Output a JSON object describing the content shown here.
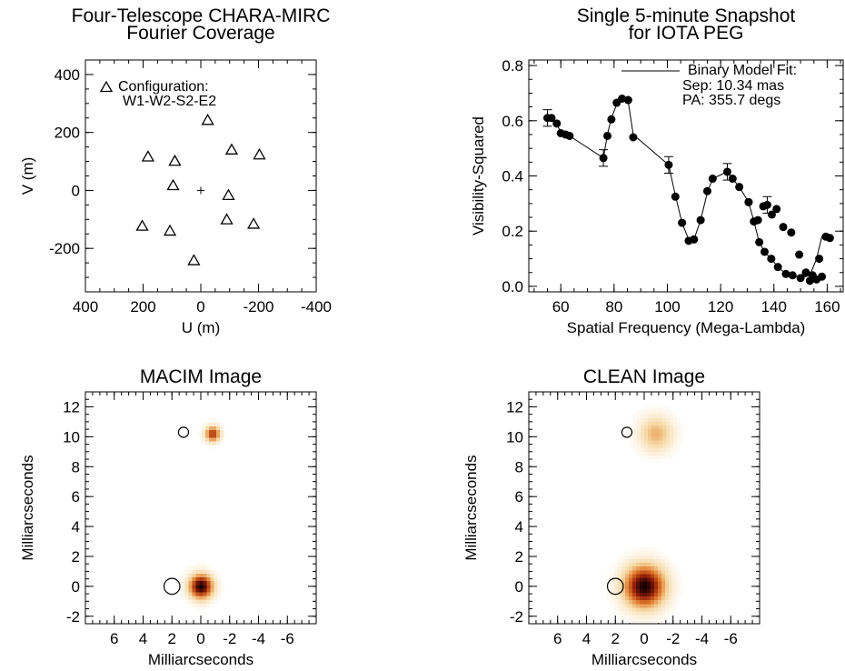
{
  "chart_data": [
    {
      "type": "scatter",
      "title": [
        "Four-Telescope CHARA-MIRC",
        "Fourier Coverage"
      ],
      "xlabel": "U (m)",
      "ylabel": "V (m)",
      "xlim": [
        400,
        -400
      ],
      "ylim": [
        -350,
        450
      ],
      "xticks": [
        400,
        200,
        0,
        -200,
        -400
      ],
      "xtick_labels": [
        "400",
        "200",
        "0",
        "-200",
        "-400"
      ],
      "yticks": [
        -200,
        0,
        200,
        400
      ],
      "ytick_labels": [
        "-200",
        "0",
        "200",
        "400"
      ],
      "legend": [
        "Configuration:",
        "W1-W2-S2-E2"
      ],
      "center_mark": [
        0,
        0
      ],
      "points": [
        [
          -24,
          242
        ],
        [
          24,
          -242
        ],
        [
          -107,
          140
        ],
        [
          107,
          -140
        ],
        [
          -203,
          123
        ],
        [
          203,
          -123
        ],
        [
          90,
          101
        ],
        [
          -90,
          -101
        ],
        [
          183,
          116
        ],
        [
          -183,
          -116
        ],
        [
          96,
          17
        ],
        [
          -96,
          -17
        ]
      ]
    },
    {
      "type": "scatter",
      "title": [
        "Single 5-minute Snapshot",
        "for IOTA PEG"
      ],
      "xlabel": "Spatial Frequency (Mega-Lambda)",
      "ylabel": "Visibility-Squared",
      "xlim": [
        48,
        166
      ],
      "ylim": [
        -0.02,
        0.82
      ],
      "xticks": [
        60,
        80,
        100,
        120,
        140,
        160
      ],
      "xtick_labels": [
        "60",
        "80",
        "100",
        "120",
        "140",
        "160"
      ],
      "yticks": [
        0.0,
        0.2,
        0.4,
        0.6,
        0.8
      ],
      "ytick_labels": [
        "0.0",
        "0.2",
        "0.4",
        "0.6",
        "0.8"
      ],
      "legend": [
        "Binary Model Fit:",
        "Sep: 10.34 mas",
        "PA: 355.7 degs"
      ],
      "series": [
        {
          "x": [
            55,
            56.5,
            58.5,
            60,
            61.8,
            63.3,
            76,
            77.5,
            79,
            81,
            83,
            85.3,
            87.2,
            100.5,
            103,
            105.5,
            108,
            110,
            112.5,
            115,
            117,
            122.5,
            124.5,
            127,
            130.5,
            134,
            136,
            137.5,
            139.2,
            141,
            143.5,
            146.5,
            149.5,
            152,
            154.5,
            157,
            159.5,
            161
          ],
          "y": [
            0.61,
            0.61,
            0.59,
            0.555,
            0.55,
            0.545,
            0.465,
            0.545,
            0.605,
            0.665,
            0.68,
            0.675,
            0.54,
            0.44,
            0.325,
            0.23,
            0.165,
            0.17,
            0.24,
            0.345,
            0.39,
            0.415,
            0.39,
            0.36,
            0.305,
            0.24,
            0.29,
            0.295,
            0.26,
            0.28,
            0.215,
            0.195,
            0.115,
            0.05,
            0.04,
            0.1,
            0.18,
            0.175
          ],
          "errors": [
            [
              55,
              0.61,
              0.03
            ],
            [
              76,
              0.465,
              0.03
            ],
            [
              100.5,
              0.44,
              0.03
            ],
            [
              122.5,
              0.415,
              0.03
            ],
            [
              137.5,
              0.295,
              0.03
            ]
          ]
        },
        {
          "x": [
            130.5,
            132.5,
            134.5,
            136.5,
            139,
            141.5,
            144.5,
            147,
            150,
            153.5,
            156,
            158
          ],
          "y": [
            0.305,
            0.235,
            0.16,
            0.125,
            0.1,
            0.07,
            0.045,
            0.04,
            0.03,
            0.02,
            0.025,
            0.035
          ]
        }
      ],
      "fit_line": {
        "x": [
          55,
          56.5,
          58.5,
          60,
          61.8,
          63.3,
          76,
          77.5,
          79,
          81,
          83,
          85.3,
          87.2,
          100.5,
          103,
          105.5,
          108,
          110,
          112.5,
          115,
          117,
          122.5,
          124.5,
          127,
          130.5,
          132.5,
          134.5,
          136.5,
          139,
          141.5,
          144.5,
          147,
          150,
          153.5,
          156,
          158,
          161
        ],
        "y": [
          0.61,
          0.605,
          0.585,
          0.56,
          0.55,
          0.545,
          0.465,
          0.55,
          0.61,
          0.66,
          0.675,
          0.67,
          0.55,
          0.44,
          0.33,
          0.23,
          0.17,
          0.17,
          0.24,
          0.34,
          0.39,
          0.415,
          0.39,
          0.36,
          0.305,
          0.235,
          0.16,
          0.125,
          0.1,
          0.07,
          0.045,
          0.04,
          0.03,
          0.04,
          0.1,
          0.18,
          0.175
        ]
      }
    },
    {
      "type": "heatmap",
      "title": "MACIM Image",
      "xlabel": "Milliarcseconds",
      "ylabel": "Milliarcseconds",
      "xlim": [
        8,
        -8
      ],
      "ylim": [
        -2.5,
        13
      ],
      "xticks": [
        6,
        4,
        2,
        0,
        -2,
        -4,
        -6
      ],
      "xtick_labels": [
        "6",
        "4",
        "2",
        "0",
        "-2",
        "-4",
        "-6"
      ],
      "yticks": [
        -2,
        0,
        2,
        4,
        6,
        8,
        10,
        12
      ],
      "ytick_labels": [
        "-2",
        "0",
        "2",
        "4",
        "6",
        "8",
        "10",
        "12"
      ],
      "sources": [
        {
          "x": 0.0,
          "y": 0.0,
          "intensity": 1.0,
          "sigma": 0.55
        },
        {
          "x": -0.8,
          "y": 10.2,
          "intensity": 0.7,
          "sigma": 0.35
        }
      ],
      "circles": [
        {
          "x": 2.0,
          "y": 0.0,
          "r": 0.55
        },
        {
          "x": 1.2,
          "y": 10.3,
          "r": 0.35
        }
      ]
    },
    {
      "type": "heatmap",
      "title": "CLEAN Image",
      "xlabel": "Milliarcseconds",
      "ylabel": "Milliarcseconds",
      "xlim": [
        8,
        -8
      ],
      "ylim": [
        -2.5,
        13
      ],
      "xticks": [
        6,
        4,
        2,
        0,
        -2,
        -4,
        -6
      ],
      "xtick_labels": [
        "6",
        "4",
        "2",
        "0",
        "-2",
        "-4",
        "-6"
      ],
      "yticks": [
        -2,
        0,
        2,
        4,
        6,
        8,
        10,
        12
      ],
      "ytick_labels": [
        "-2",
        "0",
        "2",
        "4",
        "6",
        "8",
        "10",
        "12"
      ],
      "sources": [
        {
          "x": 0.0,
          "y": 0.0,
          "intensity": 1.0,
          "sigma": 0.95
        },
        {
          "x": -0.8,
          "y": 10.2,
          "intensity": 0.35,
          "sigma": 0.8
        }
      ],
      "circles": [
        {
          "x": 2.0,
          "y": 0.0,
          "r": 0.55
        },
        {
          "x": 1.2,
          "y": 10.3,
          "r": 0.35
        }
      ]
    }
  ]
}
